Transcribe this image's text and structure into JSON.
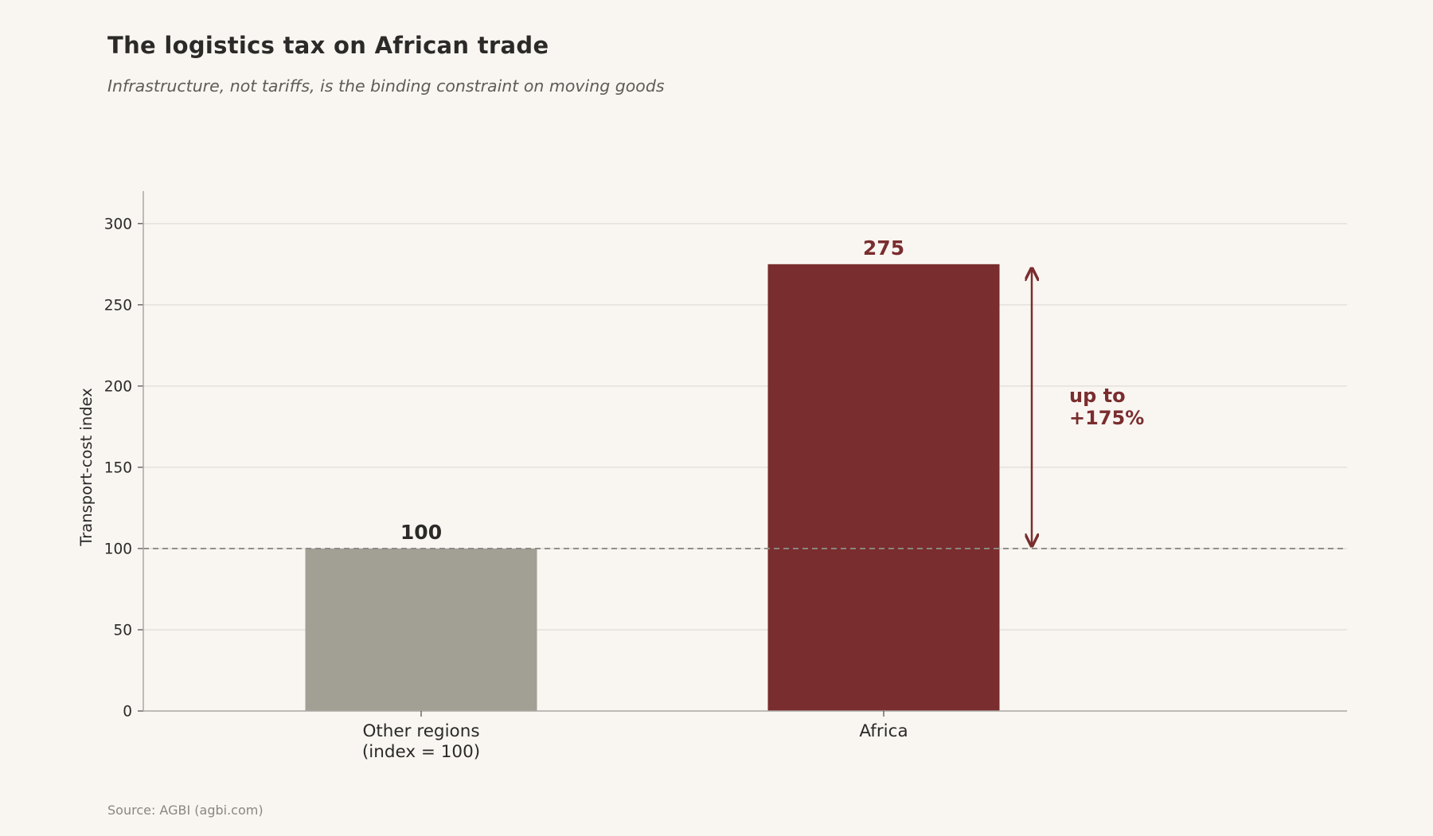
{
  "title": "The logistics tax on African trade",
  "subtitle": "Infrastructure, not tariffs, is the binding constraint on moving goods",
  "source": "Source: AGBI (agbi.com)",
  "colors": {
    "background": "#f9f6f2",
    "other_regions_bar": "#a29f94",
    "africa_bar": "#7a2d2e",
    "reference_line": "#8c8985",
    "grid": "#e4e1dc"
  },
  "chart_data": {
    "type": "bar",
    "categories": [
      [
        "Other regions",
        "(index = 100)"
      ],
      [
        "Africa"
      ]
    ],
    "values": [
      100,
      275
    ],
    "data_labels": [
      "100",
      "275"
    ],
    "ylabel": "Transport-cost index",
    "xlabel": "",
    "ylim": [
      0,
      320
    ],
    "yticks": [
      0,
      50,
      100,
      150,
      200,
      250,
      300
    ],
    "grid": "horizontal",
    "reference_line": 100,
    "annotation": {
      "lines": [
        "up to",
        "+175%"
      ],
      "from": 100,
      "to": 275
    }
  }
}
